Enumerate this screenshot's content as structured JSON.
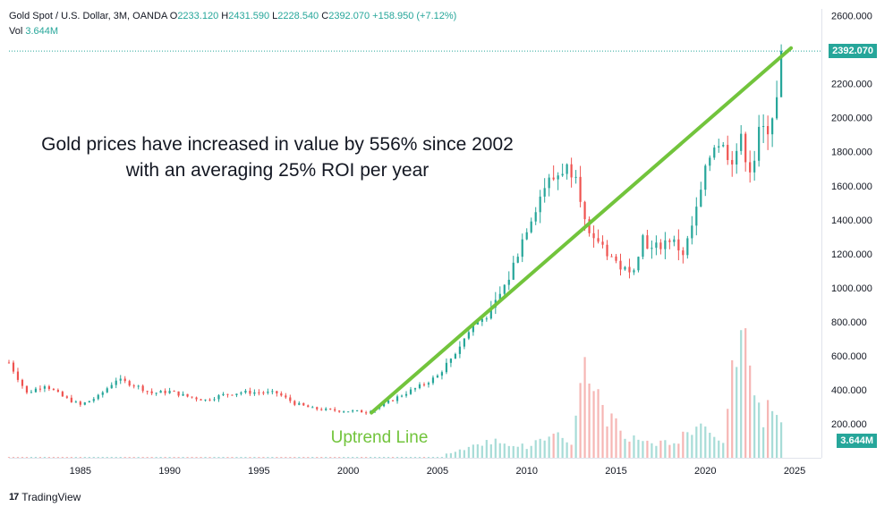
{
  "legend": {
    "symbol": "Gold Spot / U.S. Dollar, 3M, OANDA",
    "o_label": "O",
    "o": "2233.120",
    "h_label": "H",
    "h": "2431.590",
    "l_label": "L",
    "l": "2228.540",
    "c_label": "C",
    "c": "2392.070",
    "change": "+158.950 (+7.12%)",
    "vol_label": "Vol",
    "vol": "3.644M"
  },
  "annotation": {
    "line1": "Gold prices have increased in value by 556% since 2002",
    "line2": "with an averaging 25% ROI per year",
    "trend_label": "Uptrend Line"
  },
  "price_tag": "2392.070",
  "volume_tag": "3.644M",
  "brand": {
    "logo": "17",
    "name": "TradingView"
  },
  "colors": {
    "up": "#26a69a",
    "down": "#ef5350",
    "trend": "#72c43c",
    "vol_up": "#a7dcd7",
    "vol_down": "#f6b6b4"
  },
  "chart_data": {
    "type": "candlestick",
    "x_tick_labels": [
      "1985",
      "1990",
      "1995",
      "2000",
      "2005",
      "2010",
      "2015",
      "2020",
      "2025"
    ],
    "y_tick_labels": [
      "200.000",
      "400.000",
      "600.000",
      "800.000",
      "1000.000",
      "1200.000",
      "1400.000",
      "1600.000",
      "1800.000",
      "2000.000",
      "2200.000",
      "2400.000",
      "2600.000"
    ],
    "x_range": [
      1981.0,
      2026.5
    ],
    "y_range": [
      0,
      2640
    ],
    "last_close": 2392.07,
    "trend_line": {
      "from": [
        2001.3,
        265
      ],
      "to": [
        2024.8,
        2410
      ]
    },
    "price_path": [
      [
        1981.0,
        560
      ],
      [
        1982.0,
        380
      ],
      [
        1983.0,
        430
      ],
      [
        1984.0,
        360
      ],
      [
        1985.0,
        310
      ],
      [
        1986.0,
        360
      ],
      [
        1987.0,
        460
      ],
      [
        1988.0,
        430
      ],
      [
        1989.0,
        380
      ],
      [
        1990.0,
        390
      ],
      [
        1991.0,
        360
      ],
      [
        1992.0,
        340
      ],
      [
        1993.0,
        370
      ],
      [
        1994.0,
        385
      ],
      [
        1995.0,
        385
      ],
      [
        1996.0,
        380
      ],
      [
        1997.0,
        320
      ],
      [
        1998.0,
        290
      ],
      [
        1999.0,
        280
      ],
      [
        2000.0,
        275
      ],
      [
        2001.0,
        270
      ],
      [
        2002.0,
        315
      ],
      [
        2003.0,
        370
      ],
      [
        2004.0,
        420
      ],
      [
        2005.0,
        480
      ],
      [
        2006.0,
        620
      ],
      [
        2007.0,
        780
      ],
      [
        2008.0,
        860
      ],
      [
        2009.0,
        1060
      ],
      [
        2010.0,
        1360
      ],
      [
        2011.0,
        1600
      ],
      [
        2011.6,
        1650
      ],
      [
        2012.0,
        1700
      ],
      [
        2012.8,
        1700
      ],
      [
        2013.2,
        1400
      ],
      [
        2013.6,
        1250
      ],
      [
        2014.0,
        1280
      ],
      [
        2015.0,
        1150
      ],
      [
        2015.8,
        1070
      ],
      [
        2016.5,
        1300
      ],
      [
        2017.0,
        1220
      ],
      [
        2018.0,
        1290
      ],
      [
        2018.8,
        1200
      ],
      [
        2019.5,
        1450
      ],
      [
        2020.3,
        1800
      ],
      [
        2020.6,
        1880
      ],
      [
        2021.0,
        1820
      ],
      [
        2021.5,
        1770
      ],
      [
        2022.0,
        1860
      ],
      [
        2022.6,
        1680
      ],
      [
        2023.0,
        1900
      ],
      [
        2023.5,
        1950
      ],
      [
        2024.0,
        2100
      ],
      [
        2024.3,
        2230
      ],
      [
        2024.4,
        2392
      ]
    ],
    "volume_path": [
      [
        2005.5,
        0.05
      ],
      [
        2008.0,
        0.25
      ],
      [
        2010.0,
        0.15
      ],
      [
        2011.6,
        0.35
      ],
      [
        2012.5,
        0.2
      ],
      [
        2013.2,
        1.25
      ],
      [
        2013.8,
        0.95
      ],
      [
        2014.5,
        0.55
      ],
      [
        2016.0,
        0.25
      ],
      [
        2018.0,
        0.2
      ],
      [
        2020.0,
        0.45
      ],
      [
        2021.0,
        0.25
      ],
      [
        2021.9,
        1.8
      ],
      [
        2022.2,
        1.8
      ],
      [
        2022.6,
        0.85
      ],
      [
        2023.2,
        0.55
      ],
      [
        2023.8,
        0.75
      ],
      [
        2024.2,
        0.65
      ],
      [
        2024.4,
        0.5
      ]
    ],
    "volume_scale_max": 2.0,
    "grid": false,
    "legend_position": "top-left"
  }
}
